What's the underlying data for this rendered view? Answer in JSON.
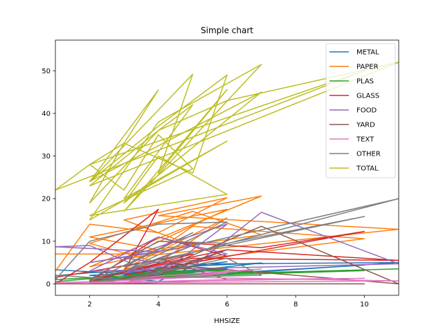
{
  "chart_data": {
    "type": "line",
    "title": "Simple chart",
    "xlabel": "HHSIZE",
    "ylabel": "",
    "xlim": [
      1,
      11
    ],
    "ylim": [
      -2.7,
      57.2
    ],
    "x_ticks": [
      2,
      4,
      6,
      8,
      10
    ],
    "y_ticks": [
      0,
      10,
      20,
      30,
      40,
      50
    ],
    "grid": false,
    "legend_position": "top-right",
    "series": [
      {
        "name": "METAL",
        "color": "#1f77b4",
        "x": [
          1,
          2,
          4,
          2,
          6,
          3,
          5,
          2,
          4,
          11,
          6,
          3,
          4,
          7,
          2,
          5,
          4,
          10,
          3,
          6,
          2,
          4,
          5,
          3,
          1
        ],
        "y": [
          1.9,
          2.6,
          3.4,
          1.4,
          5.2,
          2.1,
          3.0,
          0.8,
          4.6,
          5.0,
          2.3,
          1.1,
          3.8,
          4.9,
          0.4,
          2.7,
          1.6,
          4.4,
          0.9,
          3.6,
          2.0,
          0.6,
          4.1,
          2.4,
          3.3
        ]
      },
      {
        "name": "PAPER",
        "color": "#ff7f0e",
        "x": [
          1,
          2,
          4,
          6,
          3,
          5,
          2,
          7,
          4,
          11,
          3,
          6,
          2,
          4,
          5,
          10,
          3,
          6,
          4,
          2,
          5,
          7,
          3,
          1
        ],
        "y": [
          3.0,
          14.0,
          12.0,
          20.2,
          15.0,
          9.0,
          4.0,
          20.6,
          16.0,
          12.8,
          6.0,
          17.5,
          11.0,
          8.0,
          13.5,
          10.6,
          3.5,
          15.5,
          5.0,
          9.5,
          17.0,
          11.5,
          7.0,
          7.0
        ]
      },
      {
        "name": "PLAS",
        "color": "#2ca02c",
        "x": [
          1,
          2,
          4,
          6,
          3,
          11,
          5,
          2,
          4,
          7,
          3,
          6,
          2,
          5,
          10,
          4,
          1
        ],
        "y": [
          0.5,
          1.2,
          2.5,
          3.3,
          1.8,
          3.5,
          2.2,
          0.8,
          3.1,
          2.9,
          1.4,
          2.6,
          0.6,
          1.9,
          3.1,
          2.3,
          1.0
        ]
      },
      {
        "name": "GLASS",
        "color": "#d62728",
        "x": [
          1,
          2,
          4,
          3,
          6,
          11,
          5,
          2,
          4,
          7,
          10,
          3,
          6,
          4,
          2,
          5,
          1
        ],
        "y": [
          0.0,
          5.0,
          17.5,
          3.0,
          8.0,
          5.5,
          6.0,
          1.0,
          10.0,
          8.5,
          12.3,
          2.0,
          6.5,
          11.0,
          0.5,
          7.0,
          1.5
        ]
      },
      {
        "name": "FOOD",
        "color": "#9467bd",
        "x": [
          1,
          2,
          4,
          6,
          3,
          5,
          7,
          11,
          2,
          4,
          6,
          3,
          5,
          2,
          4,
          1
        ],
        "y": [
          8.7,
          9.0,
          2.0,
          14.0,
          6.0,
          4.0,
          16.8,
          4.7,
          3.0,
          11.0,
          7.0,
          2.5,
          9.0,
          5.0,
          7.5,
          8.7
        ]
      },
      {
        "name": "YARD",
        "color": "#8c564b",
        "x": [
          1,
          2,
          4,
          6,
          3,
          7,
          11,
          5,
          2,
          4,
          6,
          3,
          10,
          2,
          1
        ],
        "y": [
          0.0,
          0.0,
          2.0,
          8.0,
          0.0,
          13.5,
          0.0,
          4.0,
          0.0,
          6.0,
          1.0,
          0.0,
          0.0,
          0.0,
          0.0
        ]
      },
      {
        "name": "TEXT",
        "color": "#e377c2",
        "x": [
          1,
          2,
          4,
          6,
          3,
          5,
          11,
          2,
          4,
          7,
          3,
          6,
          10,
          1
        ],
        "y": [
          0.3,
          0.5,
          1.2,
          2.5,
          0.8,
          1.5,
          0.7,
          0.2,
          1.8,
          3.5,
          0.4,
          1.0,
          1.3,
          0.2
        ]
      },
      {
        "name": "OTHER",
        "color": "#7f7f7f",
        "x": [
          1,
          2,
          4,
          6,
          3,
          5,
          11,
          2,
          4,
          6,
          10,
          3,
          5,
          2,
          4,
          7,
          6,
          3,
          1
        ],
        "y": [
          1.0,
          10.0,
          14.0,
          14.5,
          3.0,
          9.0,
          20.0,
          1.0,
          10.0,
          9.5,
          15.8,
          4.0,
          12.0,
          0.5,
          1.5,
          2.0,
          6.0,
          1.0,
          2.0
        ]
      },
      {
        "name": "TOTAL",
        "color": "#bcbd22",
        "x": [
          1,
          2,
          3,
          4,
          2,
          5,
          4,
          6,
          3,
          7,
          4,
          2,
          6,
          3,
          5,
          4,
          2,
          11,
          6,
          4,
          2,
          3,
          5,
          6,
          4,
          2,
          7,
          3,
          4,
          6,
          2,
          5,
          4,
          3,
          2,
          10,
          1
        ],
        "y": [
          22.0,
          28.0,
          33.0,
          45.5,
          24.0,
          49.2,
          26.0,
          45.6,
          17.0,
          51.5,
          38.0,
          15.0,
          33.5,
          20.0,
          42.0,
          36.0,
          23.0,
          52.0,
          43.0,
          36.0,
          19.0,
          33.0,
          26.0,
          49.0,
          37.0,
          24.0,
          45.0,
          19.0,
          30.0,
          21.0,
          16.0,
          27.0,
          35.0,
          22.0,
          28.0,
          50.0,
          22.0
        ]
      }
    ]
  }
}
